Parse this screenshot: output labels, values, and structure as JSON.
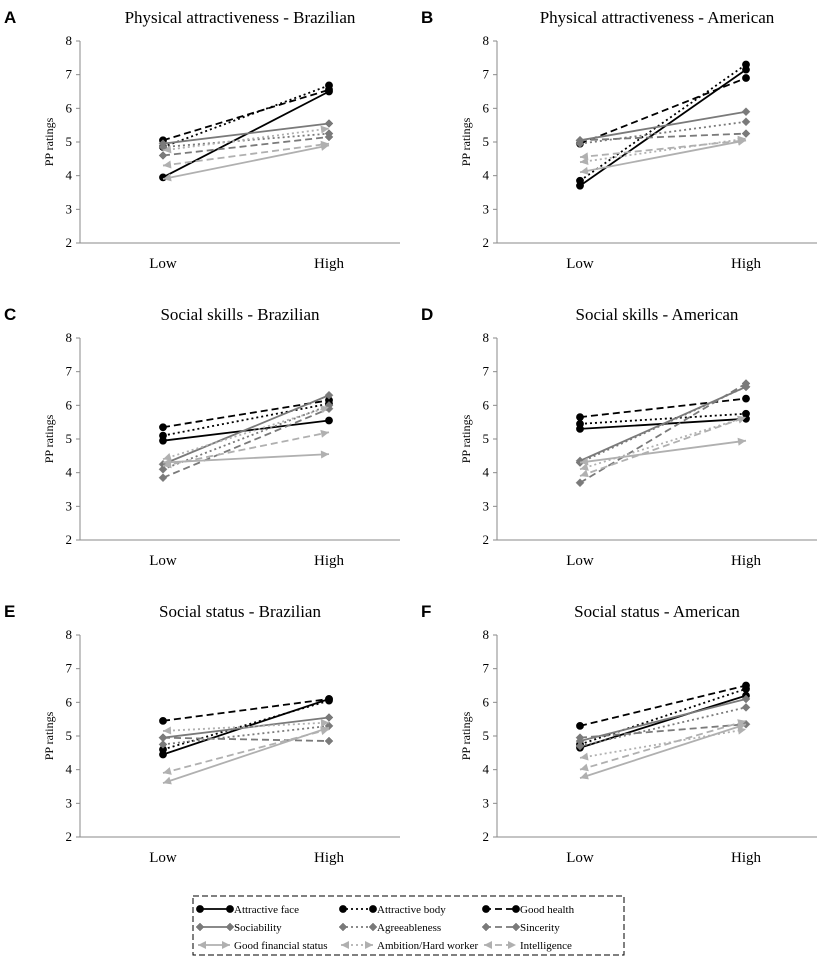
{
  "styles": {
    "Attractive face": {
      "color": "#000000",
      "dash": "",
      "marker": "circle"
    },
    "Attractive body": {
      "color": "#000000",
      "dash": "2,3",
      "marker": "circle"
    },
    "Good health": {
      "color": "#000000",
      "dash": "7,4",
      "marker": "circle"
    },
    "Sociability": {
      "color": "#7a7a7a",
      "dash": "",
      "marker": "diamond"
    },
    "Agreeableness": {
      "color": "#7a7a7a",
      "dash": "2,3",
      "marker": "diamond"
    },
    "Sincerity": {
      "color": "#7a7a7a",
      "dash": "7,4",
      "marker": "diamond"
    },
    "Good financial status": {
      "color": "#b0b0b0",
      "dash": "",
      "marker": "arrow"
    },
    "Ambition/Hard worker": {
      "color": "#b0b0b0",
      "dash": "2,3",
      "marker": "arrow"
    },
    "Intelligence": {
      "color": "#b0b0b0",
      "dash": "7,4",
      "marker": "arrow"
    }
  },
  "legend": {
    "entries": [
      "Attractive face",
      "Attractive body",
      "Good health",
      "Sociability",
      "Agreeableness",
      "Sincerity",
      "Good financial status",
      "Ambition/Hard worker",
      "Intelligence"
    ]
  },
  "chart_data": [
    {
      "letter": "A",
      "type": "line",
      "title": "Physical attractiveness - Brazilian",
      "xlabel": "",
      "ylabel": "PP ratings",
      "ylim": [
        2,
        8
      ],
      "yticks": [
        2,
        3,
        4,
        5,
        6,
        7,
        8
      ],
      "categories": [
        "Low",
        "High"
      ],
      "series": [
        {
          "name": "Attractive face",
          "values": [
            3.95,
            6.5
          ]
        },
        {
          "name": "Attractive body",
          "values": [
            4.85,
            6.68
          ]
        },
        {
          "name": "Good health",
          "values": [
            5.05,
            6.55
          ]
        },
        {
          "name": "Sociability",
          "values": [
            4.95,
            5.55
          ]
        },
        {
          "name": "Agreeableness",
          "values": [
            4.85,
            5.25
          ]
        },
        {
          "name": "Sincerity",
          "values": [
            4.6,
            5.15
          ]
        },
        {
          "name": "Good financial status",
          "values": [
            3.9,
            4.9
          ]
        },
        {
          "name": "Ambition/Hard worker",
          "values": [
            4.75,
            5.4
          ]
        },
        {
          "name": "Intelligence",
          "values": [
            4.3,
            4.95
          ]
        }
      ]
    },
    {
      "letter": "B",
      "type": "line",
      "title": "Physical attractiveness - American",
      "xlabel": "",
      "ylabel": "PP ratings",
      "ylim": [
        2,
        8
      ],
      "yticks": [
        2,
        3,
        4,
        5,
        6,
        7,
        8
      ],
      "categories": [
        "Low",
        "High"
      ],
      "series": [
        {
          "name": "Attractive face",
          "values": [
            3.7,
            7.15
          ]
        },
        {
          "name": "Attractive body",
          "values": [
            3.85,
            7.3
          ]
        },
        {
          "name": "Good health",
          "values": [
            4.95,
            6.9
          ]
        },
        {
          "name": "Sociability",
          "values": [
            5.05,
            5.9
          ]
        },
        {
          "name": "Agreeableness",
          "values": [
            4.95,
            5.6
          ]
        },
        {
          "name": "Sincerity",
          "values": [
            5.05,
            5.25
          ]
        },
        {
          "name": "Good financial status",
          "values": [
            4.1,
            5.05
          ]
        },
        {
          "name": "Ambition/Hard worker",
          "values": [
            4.4,
            5.1
          ]
        },
        {
          "name": "Intelligence",
          "values": [
            4.55,
            5.05
          ]
        }
      ]
    },
    {
      "letter": "C",
      "type": "line",
      "title": "Social skills - Brazilian",
      "xlabel": "",
      "ylabel": "PP ratings",
      "ylim": [
        2,
        8
      ],
      "yticks": [
        2,
        3,
        4,
        5,
        6,
        7,
        8
      ],
      "categories": [
        "Low",
        "High"
      ],
      "series": [
        {
          "name": "Attractive face",
          "values": [
            4.95,
            5.55
          ]
        },
        {
          "name": "Attractive body",
          "values": [
            5.1,
            6.05
          ]
        },
        {
          "name": "Good health",
          "values": [
            5.35,
            6.15
          ]
        },
        {
          "name": "Sociability",
          "values": [
            4.25,
            6.3
          ]
        },
        {
          "name": "Agreeableness",
          "values": [
            4.1,
            6.0
          ]
        },
        {
          "name": "Sincerity",
          "values": [
            3.85,
            5.9
          ]
        },
        {
          "name": "Good financial status",
          "values": [
            4.3,
            4.55
          ]
        },
        {
          "name": "Ambition/Hard worker",
          "values": [
            4.4,
            5.95
          ]
        },
        {
          "name": "Intelligence",
          "values": [
            4.2,
            5.2
          ]
        }
      ]
    },
    {
      "letter": "D",
      "type": "line",
      "title": "Social skills - American",
      "xlabel": "",
      "ylabel": "PP ratings",
      "ylim": [
        2,
        8
      ],
      "yticks": [
        2,
        3,
        4,
        5,
        6,
        7,
        8
      ],
      "categories": [
        "Low",
        "High"
      ],
      "series": [
        {
          "name": "Attractive face",
          "values": [
            5.3,
            5.6
          ]
        },
        {
          "name": "Attractive body",
          "values": [
            5.45,
            5.75
          ]
        },
        {
          "name": "Good health",
          "values": [
            5.65,
            6.2
          ]
        },
        {
          "name": "Sociability",
          "values": [
            4.35,
            6.55
          ]
        },
        {
          "name": "Agreeableness",
          "values": [
            4.3,
            6.55
          ]
        },
        {
          "name": "Sincerity",
          "values": [
            3.7,
            6.65
          ]
        },
        {
          "name": "Good financial status",
          "values": [
            4.3,
            4.95
          ]
        },
        {
          "name": "Ambition/Hard worker",
          "values": [
            4.1,
            5.65
          ]
        },
        {
          "name": "Intelligence",
          "values": [
            3.9,
            5.65
          ]
        }
      ]
    },
    {
      "letter": "E",
      "type": "line",
      "title": "Social status - Brazilian",
      "xlabel": "",
      "ylabel": "PP ratings",
      "ylim": [
        2,
        8
      ],
      "yticks": [
        2,
        3,
        4,
        5,
        6,
        7,
        8
      ],
      "categories": [
        "Low",
        "High"
      ],
      "series": [
        {
          "name": "Attractive face",
          "values": [
            4.45,
            6.1
          ]
        },
        {
          "name": "Attractive body",
          "values": [
            4.6,
            6.05
          ]
        },
        {
          "name": "Good health",
          "values": [
            5.45,
            6.1
          ]
        },
        {
          "name": "Sociability",
          "values": [
            4.95,
            5.55
          ]
        },
        {
          "name": "Agreeableness",
          "values": [
            4.75,
            5.3
          ]
        },
        {
          "name": "Sincerity",
          "values": [
            4.95,
            4.85
          ]
        },
        {
          "name": "Good financial status",
          "values": [
            3.6,
            5.25
          ]
        },
        {
          "name": "Ambition/Hard worker",
          "values": [
            5.15,
            5.4
          ]
        },
        {
          "name": "Intelligence",
          "values": [
            3.9,
            5.2
          ]
        }
      ]
    },
    {
      "letter": "F",
      "type": "line",
      "title": "Social status - American",
      "xlabel": "",
      "ylabel": "PP ratings",
      "ylim": [
        2,
        8
      ],
      "yticks": [
        2,
        3,
        4,
        5,
        6,
        7,
        8
      ],
      "categories": [
        "Low",
        "High"
      ],
      "series": [
        {
          "name": "Attractive face",
          "values": [
            4.65,
            6.2
          ]
        },
        {
          "name": "Attractive body",
          "values": [
            4.75,
            6.4
          ]
        },
        {
          "name": "Good health",
          "values": [
            5.3,
            6.5
          ]
        },
        {
          "name": "Sociability",
          "values": [
            4.85,
            6.1
          ]
        },
        {
          "name": "Agreeableness",
          "values": [
            4.7,
            5.85
          ]
        },
        {
          "name": "Sincerity",
          "values": [
            4.95,
            5.35
          ]
        },
        {
          "name": "Good financial status",
          "values": [
            3.75,
            5.35
          ]
        },
        {
          "name": "Ambition/Hard worker",
          "values": [
            4.35,
            5.2
          ]
        },
        {
          "name": "Intelligence",
          "values": [
            4.0,
            5.45
          ]
        }
      ]
    }
  ]
}
